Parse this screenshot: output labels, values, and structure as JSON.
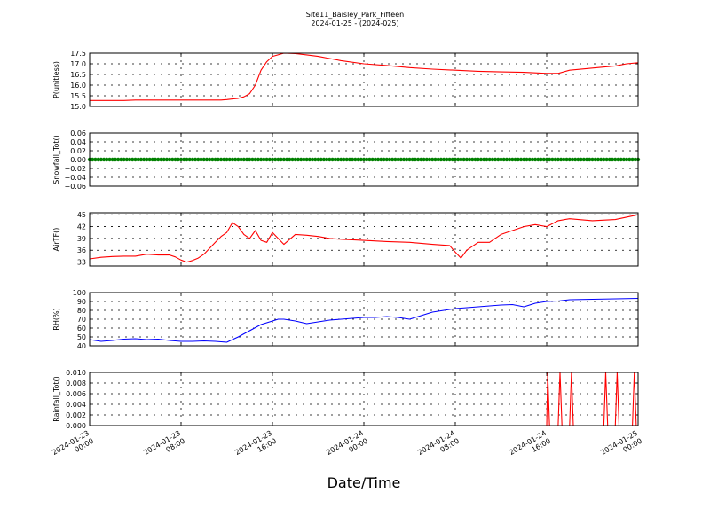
{
  "figure": {
    "title": "Site11_Baisley_Park_Fifteen",
    "subtitle": "2024-01-25 - (2024-025)",
    "xlabel": "Date/Time"
  },
  "chart_data": [
    {
      "type": "line",
      "ylabel": "P(unitless)",
      "ylim": [
        15.0,
        17.5
      ],
      "yticks": [
        "15.0",
        "15.5",
        "16.0",
        "16.5",
        "17.0",
        "17.5"
      ],
      "color": "#ff0000",
      "grid": true,
      "x": [
        "2024-01-23 00:00",
        "2024-01-23 01:00",
        "2024-01-23 02:00",
        "2024-01-23 03:00",
        "2024-01-23 04:00",
        "2024-01-23 05:00",
        "2024-01-23 06:00",
        "2024-01-23 07:00",
        "2024-01-23 08:00",
        "2024-01-23 09:00",
        "2024-01-23 10:00",
        "2024-01-23 11:00",
        "2024-01-23 11:30",
        "2024-01-23 12:00",
        "2024-01-23 12:30",
        "2024-01-23 13:00",
        "2024-01-23 13:30",
        "2024-01-23 14:00",
        "2024-01-23 14:30",
        "2024-01-23 15:00",
        "2024-01-23 15:30",
        "2024-01-23 16:00",
        "2024-01-23 17:00",
        "2024-01-23 18:00",
        "2024-01-23 19:00",
        "2024-01-23 20:00",
        "2024-01-23 21:00",
        "2024-01-23 22:00",
        "2024-01-24 00:00",
        "2024-01-24 02:00",
        "2024-01-24 04:00",
        "2024-01-24 06:00",
        "2024-01-24 08:00",
        "2024-01-24 10:00",
        "2024-01-24 12:00",
        "2024-01-24 14:00",
        "2024-01-24 16:00",
        "2024-01-24 17:00",
        "2024-01-24 18:00",
        "2024-01-24 20:00",
        "2024-01-24 22:00",
        "2024-01-24 23:00",
        "2024-01-25 00:00"
      ],
      "y": [
        15.28,
        15.28,
        15.28,
        15.28,
        15.3,
        15.3,
        15.3,
        15.3,
        15.3,
        15.3,
        15.3,
        15.3,
        15.3,
        15.32,
        15.35,
        15.38,
        15.45,
        15.6,
        16.0,
        16.7,
        17.1,
        17.35,
        17.5,
        17.48,
        17.42,
        17.35,
        17.25,
        17.15,
        17.0,
        16.92,
        16.82,
        16.75,
        16.7,
        16.65,
        16.62,
        16.6,
        16.55,
        16.55,
        16.7,
        16.8,
        16.9,
        17.0,
        17.05
      ]
    },
    {
      "type": "scatter",
      "ylabel": "Snowfall_Tot()",
      "ylim": [
        -0.06,
        0.06
      ],
      "yticks": [
        "0.06",
        "0.04",
        "0.02",
        "0.00",
        "−0.02",
        "−0.04",
        "−0.06"
      ],
      "color": "#008000",
      "grid": true,
      "x_range": [
        "2024-01-23 00:00",
        "2024-01-25 00:00"
      ],
      "y_constant": 0.0
    },
    {
      "type": "line",
      "ylabel": "AirTF()",
      "ylim": [
        32,
        45.5
      ],
      "yticks": [
        "33",
        "36",
        "39",
        "42",
        "45"
      ],
      "color": "#ff0000",
      "grid": true,
      "x": [
        "2024-01-23 00:00",
        "2024-01-23 01:00",
        "2024-01-23 02:00",
        "2024-01-23 03:00",
        "2024-01-23 04:00",
        "2024-01-23 05:00",
        "2024-01-23 06:00",
        "2024-01-23 07:00",
        "2024-01-23 07:30",
        "2024-01-23 08:00",
        "2024-01-23 08:30",
        "2024-01-23 09:00",
        "2024-01-23 09:30",
        "2024-01-23 10:00",
        "2024-01-23 11:00",
        "2024-01-23 11:30",
        "2024-01-23 12:00",
        "2024-01-23 12:30",
        "2024-01-23 13:00",
        "2024-01-23 13:30",
        "2024-01-23 14:00",
        "2024-01-23 14:30",
        "2024-01-23 15:00",
        "2024-01-23 15:30",
        "2024-01-23 16:00",
        "2024-01-23 16:30",
        "2024-01-23 17:00",
        "2024-01-23 18:00",
        "2024-01-23 19:00",
        "2024-01-23 20:00",
        "2024-01-23 21:00",
        "2024-01-23 22:00",
        "2024-01-24 00:00",
        "2024-01-24 02:00",
        "2024-01-24 04:00",
        "2024-01-24 06:00",
        "2024-01-24 07:30",
        "2024-01-24 08:00",
        "2024-01-24 08:30",
        "2024-01-24 09:00",
        "2024-01-24 10:00",
        "2024-01-24 11:00",
        "2024-01-24 12:00",
        "2024-01-24 13:00",
        "2024-01-24 14:00",
        "2024-01-24 15:00",
        "2024-01-24 16:00",
        "2024-01-24 17:00",
        "2024-01-24 18:00",
        "2024-01-24 20:00",
        "2024-01-24 22:00",
        "2024-01-25 00:00"
      ],
      "y": [
        33.8,
        34.2,
        34.4,
        34.5,
        34.5,
        35.0,
        34.8,
        34.8,
        34.3,
        33.5,
        33.0,
        33.4,
        34.0,
        35.0,
        38.0,
        39.5,
        40.5,
        43.0,
        42.0,
        40.0,
        39.0,
        41.0,
        38.5,
        38.0,
        40.5,
        39.0,
        37.5,
        40.0,
        39.8,
        39.5,
        39.0,
        38.8,
        38.5,
        38.2,
        38.0,
        37.5,
        37.2,
        35.5,
        34.0,
        36.0,
        38.0,
        38.0,
        40.0,
        41.0,
        42.0,
        42.5,
        42.0,
        43.5,
        44.0,
        43.5,
        43.8,
        45.0
      ]
    },
    {
      "type": "line",
      "ylabel": "RH(%)",
      "ylim": [
        40,
        100
      ],
      "yticks": [
        "40",
        "50",
        "60",
        "70",
        "80",
        "90",
        "100"
      ],
      "color": "#0000ff",
      "grid": true,
      "x": [
        "2024-01-23 00:00",
        "2024-01-23 01:00",
        "2024-01-23 02:00",
        "2024-01-23 03:00",
        "2024-01-23 04:00",
        "2024-01-23 05:00",
        "2024-01-23 06:00",
        "2024-01-23 07:00",
        "2024-01-23 08:00",
        "2024-01-23 09:00",
        "2024-01-23 10:00",
        "2024-01-23 11:00",
        "2024-01-23 11:30",
        "2024-01-23 12:00",
        "2024-01-23 12:30",
        "2024-01-23 13:00",
        "2024-01-23 14:00",
        "2024-01-23 15:00",
        "2024-01-23 16:00",
        "2024-01-23 16:30",
        "2024-01-23 17:00",
        "2024-01-23 18:00",
        "2024-01-23 19:00",
        "2024-01-23 20:00",
        "2024-01-23 21:00",
        "2024-01-23 22:00",
        "2024-01-24 00:00",
        "2024-01-24 01:00",
        "2024-01-24 02:00",
        "2024-01-24 03:00",
        "2024-01-24 04:00",
        "2024-01-24 05:00",
        "2024-01-24 06:00",
        "2024-01-24 07:00",
        "2024-01-24 08:00",
        "2024-01-24 10:00",
        "2024-01-24 12:00",
        "2024-01-24 13:00",
        "2024-01-24 14:00",
        "2024-01-24 15:00",
        "2024-01-24 16:00",
        "2024-01-24 17:00",
        "2024-01-24 18:00",
        "2024-01-24 20:00",
        "2024-01-24 22:00",
        "2024-01-25 00:00"
      ],
      "y": [
        47.0,
        45.0,
        46.0,
        47.5,
        48.0,
        47.0,
        47.5,
        46.0,
        45.0,
        45.0,
        45.5,
        45.0,
        44.5,
        44.0,
        47.0,
        50.0,
        57.0,
        64.0,
        68.0,
        70.0,
        70.0,
        68.0,
        65.0,
        67.0,
        69.0,
        70.0,
        72.0,
        72.0,
        73.0,
        72.0,
        70.0,
        74.0,
        78.0,
        80.0,
        82.0,
        84.0,
        86.0,
        86.5,
        84.0,
        88.0,
        90.0,
        90.5,
        92.0,
        92.5,
        93.0,
        93.5
      ]
    },
    {
      "type": "line",
      "ylabel": "Rainfall_Tot()",
      "ylim": [
        0.0,
        0.01
      ],
      "yticks": [
        "0.000",
        "0.002",
        "0.004",
        "0.006",
        "0.008",
        "0.010"
      ],
      "color": "#ff0000",
      "grid": true,
      "x": [
        "2024-01-23 00:00",
        "2024-01-24 16:00",
        "2024-01-24 16:05",
        "2024-01-24 16:15",
        "2024-01-24 17:00",
        "2024-01-24 17:10",
        "2024-01-24 17:20",
        "2024-01-24 18:00",
        "2024-01-24 18:10",
        "2024-01-24 18:20",
        "2024-01-24 21:00",
        "2024-01-24 21:10",
        "2024-01-24 21:20",
        "2024-01-24 22:00",
        "2024-01-24 22:10",
        "2024-01-24 22:20",
        "2024-01-24 23:30",
        "2024-01-24 23:40",
        "2024-01-24 23:50",
        "2024-01-25 00:00"
      ],
      "y": [
        0,
        0,
        0.01,
        0,
        0,
        0.01,
        0,
        0,
        0.01,
        0,
        0,
        0.01,
        0,
        0,
        0.01,
        0,
        0,
        0.01,
        0,
        0
      ]
    }
  ],
  "x_axis": {
    "ticks": [
      {
        "line1": "2024-01-23",
        "line2": "00:00"
      },
      {
        "line1": "2024-01-23",
        "line2": "08:00"
      },
      {
        "line1": "2024-01-23",
        "line2": "16:00"
      },
      {
        "line1": "2024-01-24",
        "line2": "00:00"
      },
      {
        "line1": "2024-01-24",
        "line2": "08:00"
      },
      {
        "line1": "2024-01-24",
        "line2": "16:00"
      },
      {
        "line1": "2024-01-25",
        "line2": "00:00"
      }
    ]
  }
}
